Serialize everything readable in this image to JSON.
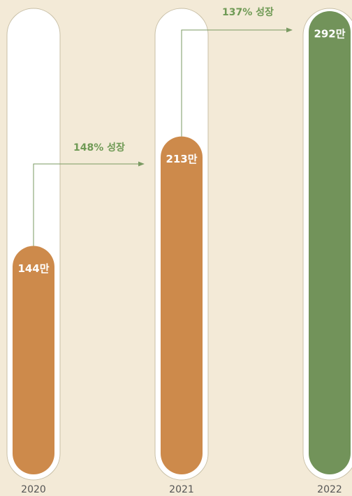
{
  "chart_data": {
    "type": "capsule-bar",
    "categories": [
      "2020",
      "2021",
      "2022"
    ],
    "values": [
      144,
      213,
      292
    ],
    "value_labels": [
      "144만",
      "213만",
      "292만"
    ],
    "colors": [
      "#cd8a4b",
      "#cd8a4b",
      "#72935a"
    ],
    "annotations": [
      {
        "text": "148% 성장"
      },
      {
        "text": "137% 성장"
      }
    ]
  }
}
